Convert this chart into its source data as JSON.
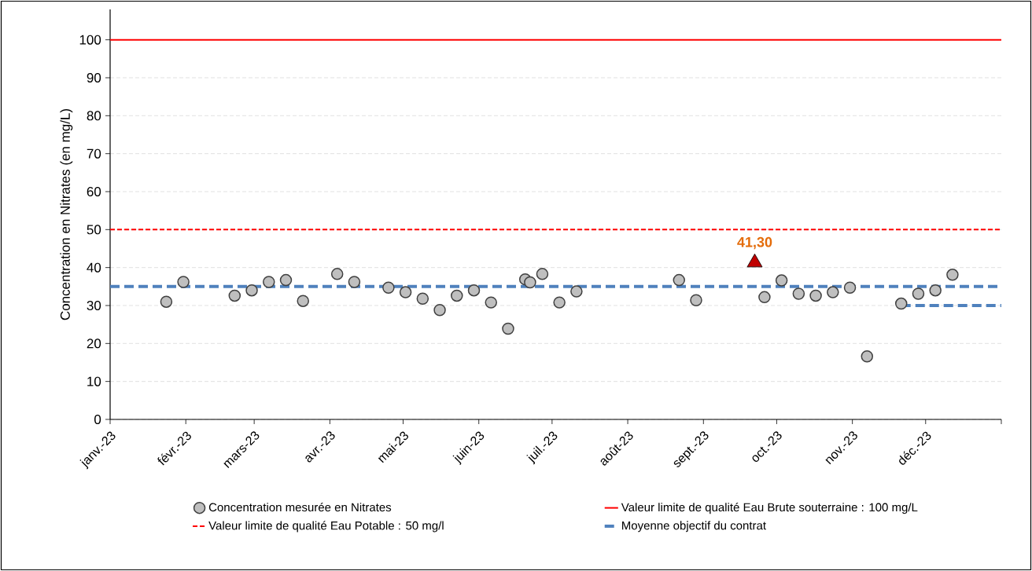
{
  "chart_data": {
    "type": "scatter",
    "ylabel": "Concentration en Nitrates (en mg/L)",
    "xlim": [
      "2023-01-01",
      "2024-01-01"
    ],
    "xticks": [
      {
        "value": "2023-01-01",
        "label": "janv.-23"
      },
      {
        "value": "2023-02-01",
        "label": "févr.-23"
      },
      {
        "value": "2023-03-01",
        "label": "mars-23"
      },
      {
        "value": "2023-04-01",
        "label": "avr.-23"
      },
      {
        "value": "2023-05-01",
        "label": "mai-23"
      },
      {
        "value": "2023-06-01",
        "label": "juin-23"
      },
      {
        "value": "2023-07-01",
        "label": "juil.-23"
      },
      {
        "value": "2023-08-01",
        "label": "août-23"
      },
      {
        "value": "2023-09-01",
        "label": "sept.-23"
      },
      {
        "value": "2023-10-01",
        "label": "oct.-23"
      },
      {
        "value": "2023-11-01",
        "label": "nov.-23"
      },
      {
        "value": "2023-12-01",
        "label": "déc.-23"
      },
      {
        "value": "2024-01-01",
        "label": null
      }
    ],
    "ylim": [
      0,
      108
    ],
    "yticks": [
      0,
      10,
      20,
      30,
      40,
      50,
      60,
      70,
      80,
      90,
      100
    ],
    "grid": "y",
    "legend": "bottom",
    "series": [
      {
        "name": "Concentration mesurée en Nitrates",
        "marker": "circle",
        "color": "#bfbfbf",
        "x": [
          "2023-01-24",
          "2023-01-31",
          "2023-02-21",
          "2023-02-28",
          "2023-03-07",
          "2023-03-14",
          "2023-03-21",
          "2023-04-04",
          "2023-04-11",
          "2023-04-25",
          "2023-05-02",
          "2023-05-09",
          "2023-05-16",
          "2023-05-23",
          "2023-05-30",
          "2023-06-06",
          "2023-06-13",
          "2023-06-20",
          "2023-06-22",
          "2023-06-27",
          "2023-07-04",
          "2023-07-11",
          "2023-08-22",
          "2023-08-29",
          "2023-09-26",
          "2023-10-03",
          "2023-10-10",
          "2023-10-17",
          "2023-10-24",
          "2023-10-31",
          "2023-11-07",
          "2023-11-21",
          "2023-11-28",
          "2023-12-05",
          "2023-12-12"
        ],
        "values": [
          31.0,
          36.2,
          32.6,
          34.0,
          36.2,
          36.7,
          31.2,
          38.3,
          36.2,
          34.7,
          33.5,
          31.8,
          28.8,
          32.6,
          34.0,
          30.8,
          23.9,
          36.9,
          36.1,
          38.3,
          30.8,
          33.7,
          36.7,
          31.4,
          32.2,
          36.6,
          33.1,
          32.6,
          33.5,
          34.7,
          16.6,
          30.5,
          33.1,
          34.0,
          38.1
        ]
      },
      {
        "marker": "triangle",
        "color": "#c00000",
        "x": [
          "2023-09-22"
        ],
        "values": [
          41.3
        ],
        "value_labels": [
          "41,30"
        ]
      },
      {
        "name": "Moyenne objectif du contrat",
        "type": "line",
        "line_style": "dashed",
        "color": "#4f81bd",
        "x": [
          "2023-01-01",
          "2024-01-01"
        ],
        "values": [
          35,
          35
        ]
      },
      {
        "type": "line",
        "line_style": "dashed",
        "color": "#4f81bd",
        "x": [
          "2023-11-21",
          "2024-01-01"
        ],
        "values": [
          30,
          30
        ]
      }
    ],
    "ref_lines": [
      {
        "axis": "y",
        "value": 100,
        "label": "Valeur limite de qualité Eau Brute souterraine : 100 mg/L",
        "color": "#ff0000",
        "line_style": "solid"
      },
      {
        "axis": "y",
        "value": 50,
        "label": "Valeur limite de qualité Eau Potable : 50 mg/l",
        "color": "#ff0000",
        "line_style": "dashed"
      }
    ]
  }
}
